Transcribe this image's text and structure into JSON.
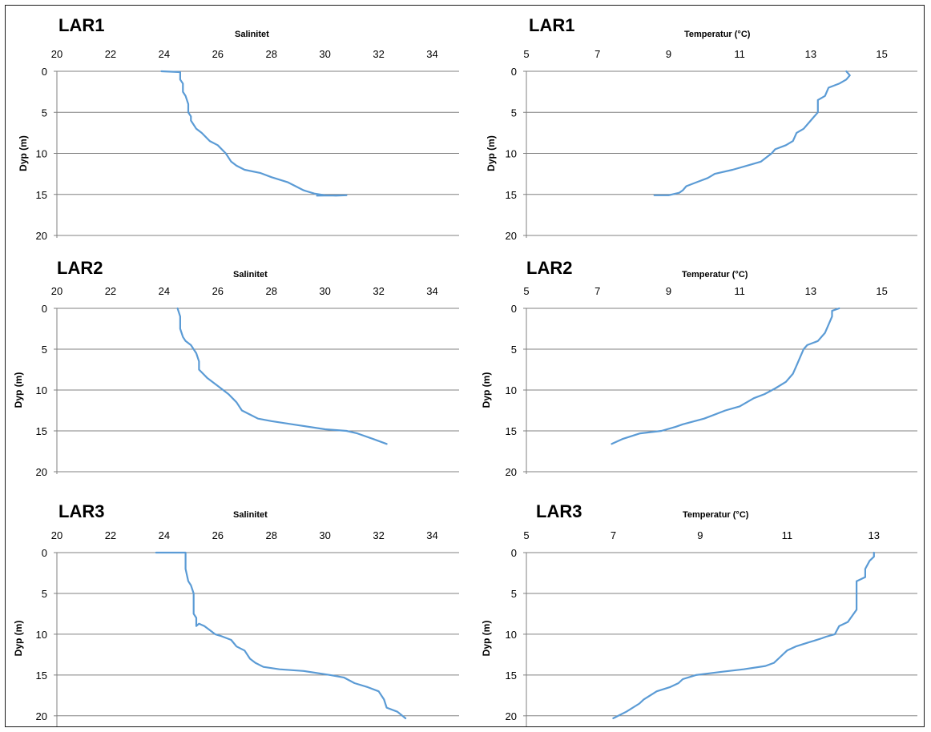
{
  "chart_data": [
    {
      "id": "lar1-sal",
      "type": "line",
      "station": "LAR1",
      "title": "Salinitet",
      "xlabel": "",
      "ylabel": "Dyp (m)",
      "xlim": [
        20,
        35
      ],
      "ylim": [
        0,
        20
      ],
      "xticks": [
        "20",
        "22",
        "24",
        "26",
        "28",
        "30",
        "32",
        "34"
      ],
      "yticks": [
        "0",
        "5",
        "10",
        "15",
        "20"
      ],
      "color": "#5b9bd5",
      "x": [
        23.9,
        24.6,
        24.6,
        24.7,
        24.7,
        24.8,
        24.9,
        24.9,
        25.0,
        25.0,
        25.2,
        25.4,
        25.7,
        26.0,
        26.3,
        26.5,
        26.7,
        27.0,
        27.6,
        28.0,
        28.6,
        28.9,
        29.2,
        29.6,
        30.0,
        30.4,
        30.8,
        29.7
      ],
      "y": [
        0.0,
        0.1,
        1.0,
        1.5,
        2.5,
        3.0,
        4.0,
        5.0,
        5.5,
        6.0,
        7.0,
        7.5,
        8.5,
        9.0,
        10.0,
        11.0,
        11.5,
        12.0,
        12.4,
        12.9,
        13.5,
        14.0,
        14.5,
        14.9,
        15.1,
        15.15,
        15.1,
        15.15
      ]
    },
    {
      "id": "lar1-temp",
      "type": "line",
      "station": "LAR1",
      "title": "Temperatur (°C)",
      "xlabel": "",
      "ylabel": "Dyp (m)",
      "xlim": [
        5,
        16
      ],
      "ylim": [
        0,
        20
      ],
      "xticks": [
        "5",
        "7",
        "9",
        "11",
        "13",
        "15"
      ],
      "yticks": [
        "0",
        "5",
        "10",
        "15",
        "20"
      ],
      "color": "#5b9bd5",
      "x": [
        14.0,
        14.1,
        14.0,
        13.8,
        13.5,
        13.4,
        13.2,
        13.2,
        13.1,
        13.0,
        12.8,
        12.6,
        12.5,
        12.3,
        12.0,
        11.9,
        11.6,
        11.2,
        10.8,
        10.3,
        10.1,
        9.8,
        9.5,
        9.4,
        9.3,
        9.0,
        8.6
      ],
      "y": [
        0.0,
        0.5,
        1.0,
        1.5,
        2.0,
        3.0,
        3.5,
        5.0,
        5.5,
        6.0,
        7.0,
        7.5,
        8.5,
        9.0,
        9.5,
        10.0,
        11.0,
        11.5,
        12.0,
        12.5,
        13.0,
        13.5,
        14.0,
        14.5,
        14.8,
        15.1,
        15.1
      ]
    },
    {
      "id": "lar2-sal",
      "type": "line",
      "station": "LAR2",
      "title": "Salinitet",
      "xlabel": "",
      "ylabel": "Dyp (m)",
      "xlim": [
        20,
        35
      ],
      "ylim": [
        0,
        20
      ],
      "xticks": [
        "20",
        "22",
        "24",
        "26",
        "28",
        "30",
        "32",
        "34"
      ],
      "yticks": [
        "0",
        "5",
        "10",
        "15",
        "20"
      ],
      "color": "#5b9bd5",
      "x": [
        24.5,
        24.6,
        24.6,
        24.7,
        24.8,
        25.0,
        25.2,
        25.3,
        25.3,
        25.6,
        26.0,
        26.4,
        26.7,
        26.9,
        27.2,
        27.5,
        28.0,
        29.0,
        30.0,
        30.8,
        31.2,
        31.8,
        32.3
      ],
      "y": [
        0.0,
        1.0,
        2.5,
        3.5,
        4.0,
        4.5,
        5.5,
        6.5,
        7.5,
        8.5,
        9.5,
        10.5,
        11.5,
        12.5,
        13.0,
        13.5,
        13.8,
        14.3,
        14.8,
        15.0,
        15.3,
        16.0,
        16.6
      ]
    },
    {
      "id": "lar2-temp",
      "type": "line",
      "station": "LAR2",
      "title": "Temperatur (°C)",
      "xlabel": "",
      "ylabel": "Dyp (m)",
      "xlim": [
        5,
        16
      ],
      "ylim": [
        0,
        20
      ],
      "xticks": [
        "5",
        "7",
        "9",
        "11",
        "13",
        "15"
      ],
      "yticks": [
        "0",
        "5",
        "10",
        "15",
        "20"
      ],
      "color": "#5b9bd5",
      "x": [
        13.8,
        13.6,
        13.6,
        13.5,
        13.4,
        13.2,
        12.9,
        12.8,
        12.7,
        12.6,
        12.5,
        12.3,
        12.0,
        11.7,
        11.4,
        11.0,
        10.6,
        10.0,
        9.4,
        9.2,
        8.8,
        8.2,
        7.7,
        7.4
      ],
      "y": [
        0.0,
        0.3,
        1.0,
        2.0,
        3.0,
        4.0,
        4.5,
        5.0,
        6.0,
        7.0,
        8.0,
        9.0,
        9.8,
        10.5,
        11.0,
        12.0,
        12.5,
        13.5,
        14.2,
        14.5,
        15.0,
        15.3,
        16.0,
        16.6
      ]
    },
    {
      "id": "lar3-sal",
      "type": "line",
      "station": "LAR3",
      "title": "Salinitet",
      "xlabel": "",
      "ylabel": "Dyp (m)",
      "xlim": [
        20,
        35
      ],
      "ylim": [
        0,
        21
      ],
      "xticks": [
        "20",
        "22",
        "24",
        "26",
        "28",
        "30",
        "32",
        "34"
      ],
      "yticks": [
        "0",
        "5",
        "10",
        "15",
        "20"
      ],
      "color": "#5b9bd5",
      "x": [
        23.7,
        24.8,
        24.8,
        24.9,
        25.0,
        25.1,
        25.1,
        25.2,
        25.2,
        25.3,
        25.5,
        25.7,
        25.9,
        26.1,
        26.5,
        26.7,
        27.0,
        27.2,
        27.4,
        27.7,
        28.3,
        29.2,
        30.2,
        30.7,
        31.1,
        31.6,
        32.0,
        32.2,
        32.3,
        32.7,
        33.0
      ],
      "y": [
        0.0,
        0.0,
        2.0,
        3.5,
        4.0,
        5.0,
        7.5,
        8.0,
        9.0,
        8.7,
        9.0,
        9.5,
        10.0,
        10.2,
        10.7,
        11.5,
        12.0,
        13.0,
        13.5,
        14.0,
        14.3,
        14.5,
        15.0,
        15.3,
        16.0,
        16.5,
        17.0,
        18.0,
        19.0,
        19.5,
        20.3
      ]
    },
    {
      "id": "lar3-temp",
      "type": "line",
      "station": "LAR3",
      "title": "Temperatur (°C)",
      "xlabel": "",
      "ylabel": "Dyp (m)",
      "xlim": [
        5,
        14
      ],
      "ylim": [
        0,
        21
      ],
      "xticks": [
        "5",
        "7",
        "9",
        "11",
        "13"
      ],
      "yticks": [
        "0",
        "5",
        "10",
        "15",
        "20"
      ],
      "color": "#5b9bd5",
      "x": [
        13.0,
        13.0,
        12.9,
        12.8,
        12.8,
        12.6,
        12.6,
        12.6,
        12.6,
        12.4,
        12.2,
        12.1,
        11.9,
        11.8,
        11.5,
        11.2,
        11.0,
        10.8,
        10.7,
        10.5,
        10.0,
        9.5,
        8.9,
        8.6,
        8.5,
        8.3,
        8.0,
        7.7,
        7.6,
        7.3,
        7.0
      ],
      "y": [
        0.0,
        0.5,
        1.0,
        2.0,
        3.0,
        3.5,
        4.0,
        5.0,
        7.0,
        8.5,
        9.0,
        10.0,
        10.3,
        10.5,
        11.0,
        11.5,
        12.0,
        13.0,
        13.5,
        13.9,
        14.3,
        14.6,
        15.0,
        15.5,
        16.0,
        16.5,
        17.0,
        18.0,
        18.5,
        19.5,
        20.3
      ]
    }
  ]
}
